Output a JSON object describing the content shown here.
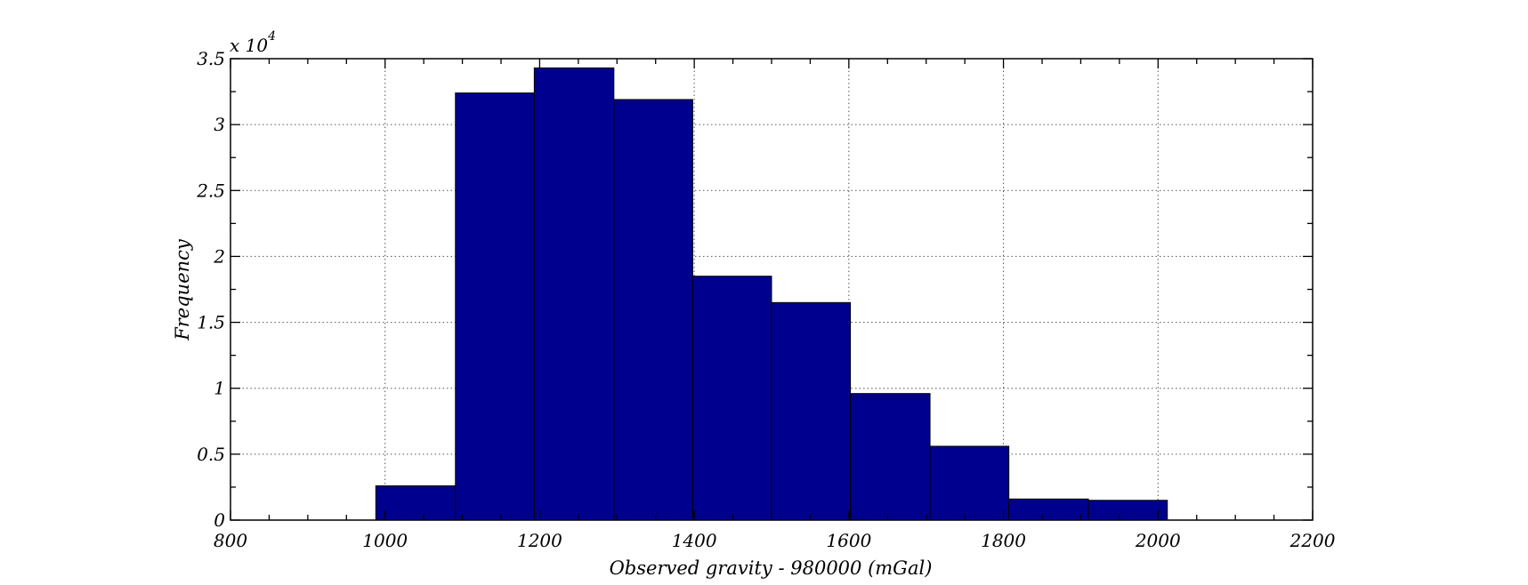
{
  "chart_data": {
    "type": "bar",
    "title": "",
    "xlabel": "Observed gravity - 980000 (mGal)",
    "ylabel": "Frequency",
    "y_exponent_label": "x 10",
    "y_exponent_power": "4",
    "xlim": [
      800,
      2200
    ],
    "ylim": [
      0,
      35000
    ],
    "x_ticks": [
      800,
      1000,
      1200,
      1400,
      1600,
      1800,
      2000,
      2200
    ],
    "x_tick_labels": [
      "800",
      "1000",
      "1200",
      "1400",
      "1600",
      "1800",
      "2000",
      "2200"
    ],
    "y_ticks": [
      0,
      5000,
      10000,
      15000,
      20000,
      25000,
      30000,
      35000
    ],
    "y_tick_labels": [
      "0",
      "0.5",
      "1",
      "1.5",
      "2",
      "2.5",
      "3",
      "3.5"
    ],
    "grid": true,
    "bar_color": "#00008f",
    "bins": [
      {
        "x0": 988,
        "x1": 1091,
        "value": 2600
      },
      {
        "x0": 1091,
        "x1": 1193,
        "value": 32400
      },
      {
        "x0": 1193,
        "x1": 1296,
        "value": 34300
      },
      {
        "x0": 1296,
        "x1": 1398,
        "value": 31900
      },
      {
        "x0": 1398,
        "x1": 1500,
        "value": 18500
      },
      {
        "x0": 1500,
        "x1": 1602,
        "value": 16500
      },
      {
        "x0": 1602,
        "x1": 1705,
        "value": 9600
      },
      {
        "x0": 1705,
        "x1": 1807,
        "value": 5600
      },
      {
        "x0": 1807,
        "x1": 1910,
        "value": 1600
      },
      {
        "x0": 1910,
        "x1": 2012,
        "value": 1500
      }
    ]
  }
}
